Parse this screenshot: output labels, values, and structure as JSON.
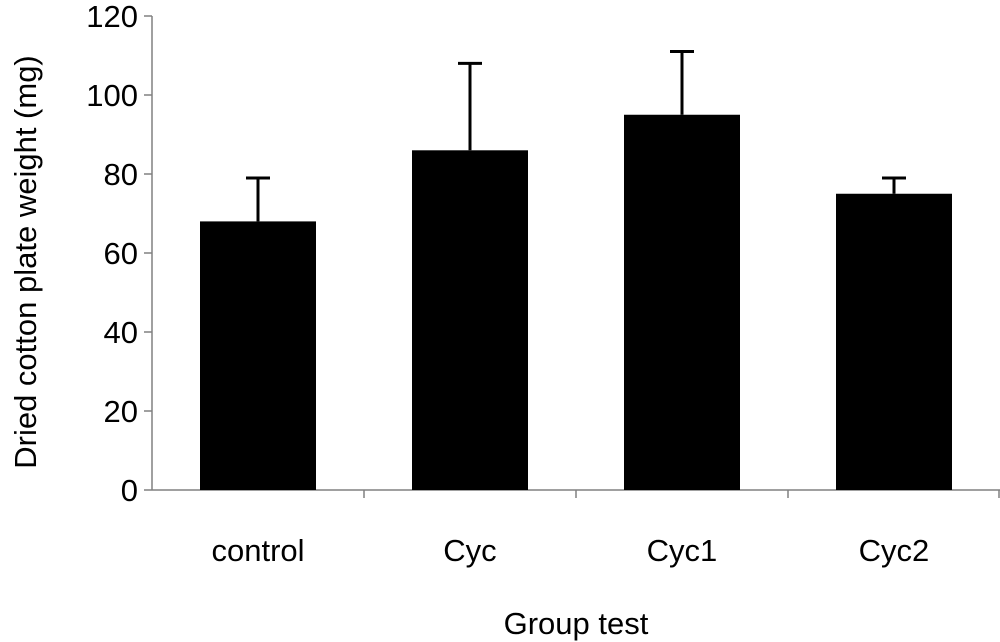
{
  "chart_data": {
    "type": "bar",
    "title": "",
    "xlabel": "Group test",
    "ylabel": "Dried cotton plate weight (mg)",
    "ylim": [
      0,
      120
    ],
    "yticks": [
      0,
      20,
      40,
      60,
      80,
      100,
      120
    ],
    "categories": [
      "control",
      "Cyc",
      "Cyc1",
      "Cyc2"
    ],
    "values": [
      68,
      86,
      95,
      75
    ],
    "error_upper": [
      11,
      22,
      16,
      4
    ],
    "bar_color": "#000000",
    "grid": false,
    "legend": "none"
  }
}
